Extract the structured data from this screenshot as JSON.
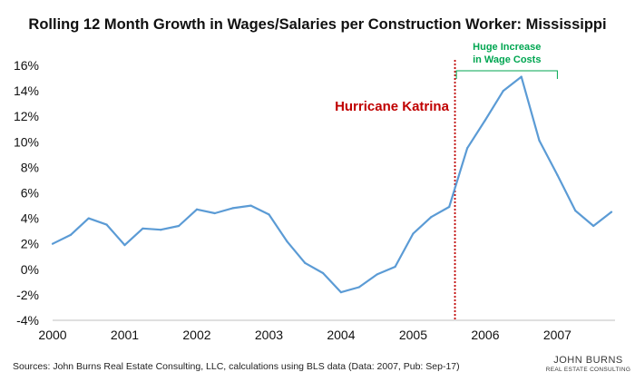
{
  "chart_data": {
    "type": "line",
    "title": "Rolling 12 Month Growth in Wages/Salaries per Construction Worker: Mississippi",
    "xlabel": "",
    "ylabel": "",
    "x_tick_labels": [
      "2000",
      "2001",
      "2002",
      "2003",
      "2004",
      "2005",
      "2006",
      "2007"
    ],
    "y_tick_labels": [
      "16%",
      "14%",
      "12%",
      "10%",
      "8%",
      "6%",
      "4%",
      "2%",
      "0%",
      "-2%",
      "-4%"
    ],
    "ylim": [
      -4,
      16
    ],
    "xlim": [
      2000,
      2007.8
    ],
    "grid": false,
    "legend": "none",
    "series": [
      {
        "color": "#5b9bd5",
        "x": [
          2000,
          2000.25,
          2000.5,
          2000.75,
          2001,
          2001.25,
          2001.5,
          2001.75,
          2002,
          2002.25,
          2002.5,
          2002.75,
          2003,
          2003.25,
          2003.5,
          2003.75,
          2004,
          2004.25,
          2004.5,
          2004.75,
          2005,
          2005.25,
          2005.5,
          2005.75,
          2006,
          2006.25,
          2006.5,
          2006.75,
          2007,
          2007.25,
          2007.5,
          2007.75
        ],
        "values": [
          2.0,
          2.7,
          4.0,
          3.5,
          1.9,
          3.2,
          3.1,
          3.4,
          4.7,
          4.4,
          4.8,
          5.0,
          4.3,
          2.2,
          0.5,
          -0.3,
          -1.8,
          -1.4,
          -0.4,
          0.2,
          2.8,
          4.1,
          4.9,
          9.5,
          11.7,
          14.0,
          15.1,
          10.1,
          7.4,
          4.6,
          3.4,
          4.5
        ]
      }
    ],
    "annotations": [
      {
        "text": "Hurricane Katrina",
        "color": "#c00000",
        "x": 2005.58,
        "style": "dotted vertical line"
      },
      {
        "text_lines": [
          "Huge Increase",
          "in Wage Costs"
        ],
        "color": "#00a651",
        "x_range": [
          2005.6,
          2007
        ]
      }
    ]
  },
  "footer": {
    "source": "Sources: John Burns Real Estate Consulting, LLC, calculations using BLS data (Data: 2007, Pub: Sep-17)",
    "logo_line1": "JOHN BURNS",
    "logo_line2": "REAL ESTATE CONSULTING"
  }
}
